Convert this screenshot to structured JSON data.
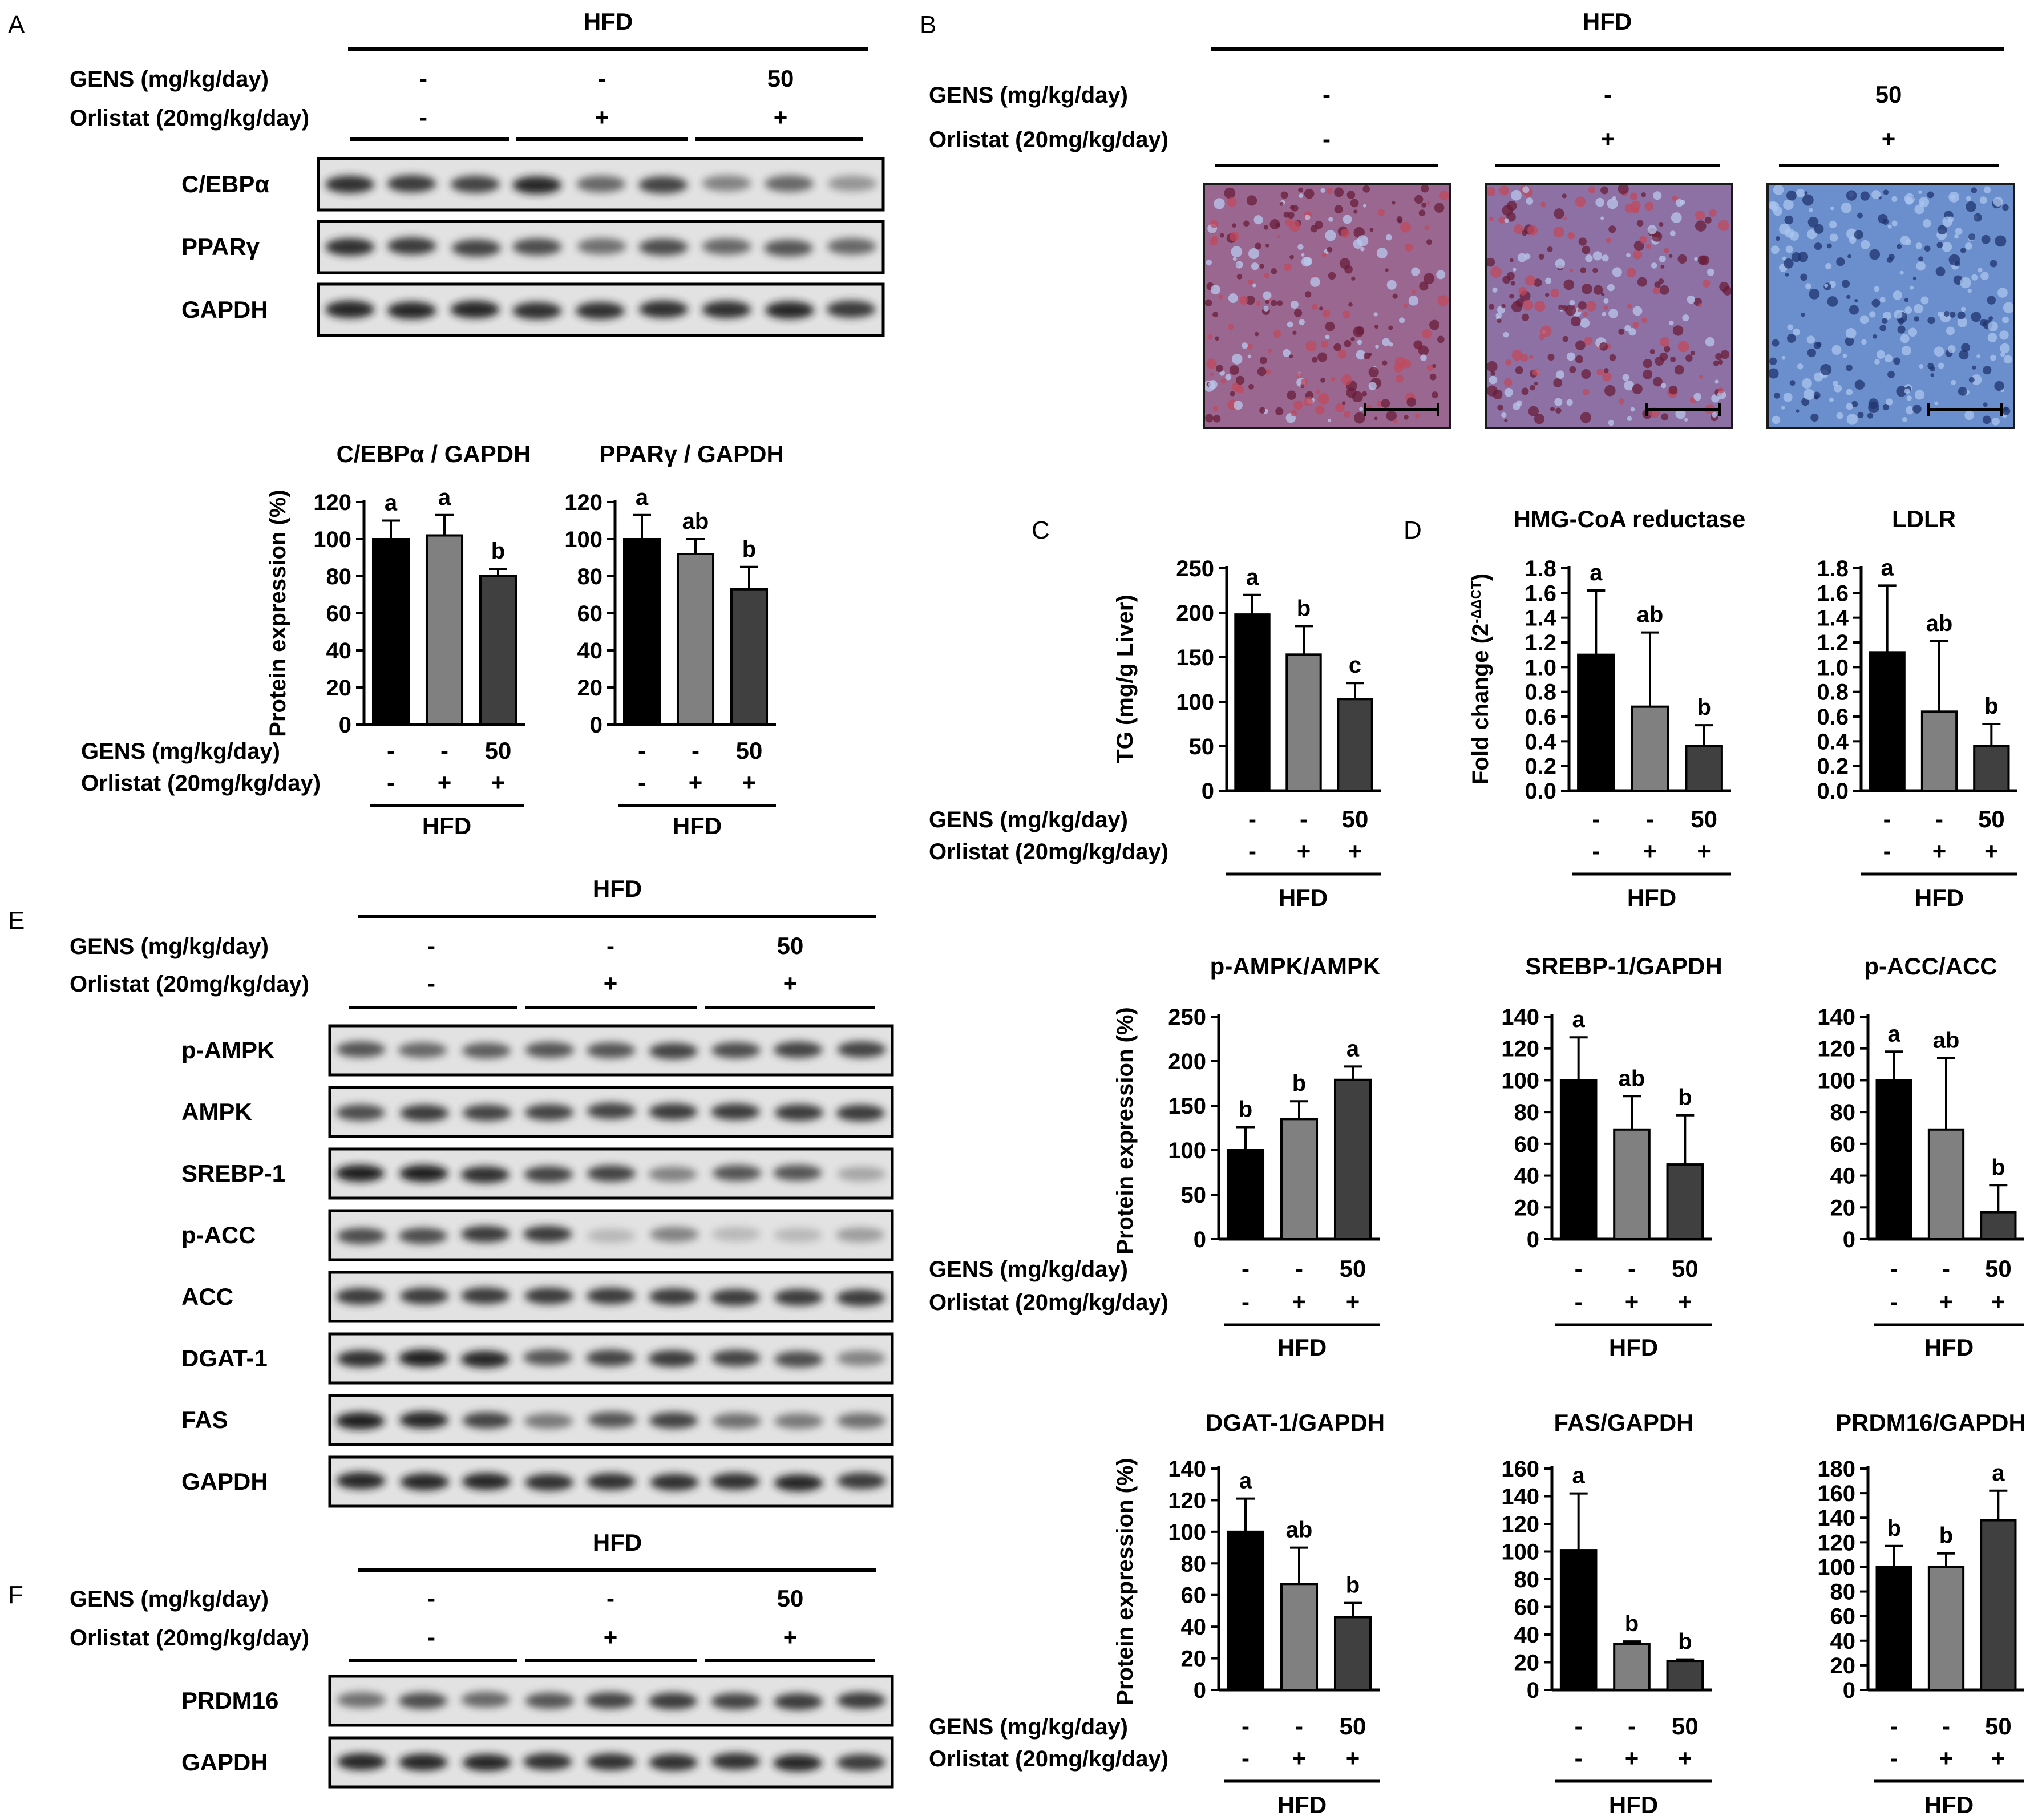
{
  "panels": {
    "A": "A",
    "B": "B",
    "C": "C",
    "D": "D",
    "E": "E",
    "F": "F"
  },
  "labels": {
    "hfd": "HFD",
    "gens": "GENS (mg/kg/day)",
    "gens_alt": "GENS (mg/kg/day)",
    "orlistat": "Orlistat (20mg/kg/day)",
    "treatment_gens": [
      "-",
      "-",
      "50"
    ],
    "treatment_orlistat": [
      "-",
      "+",
      "+"
    ]
  },
  "blots": {
    "A": [
      "C/EBPα",
      "PPARγ",
      "GAPDH"
    ],
    "E": [
      "p-AMPK",
      "AMPK",
      "SREBP-1",
      "p-ACC",
      "ACC",
      "DGAT-1",
      "FAS",
      "GAPDH"
    ],
    "F": [
      "PRDM16",
      "GAPDH"
    ]
  },
  "colors": {
    "bar1": "#000000",
    "bar2": "#808080",
    "bar3": "#404040"
  },
  "histology": {
    "tint": [
      "#b03a56",
      "#9a4a7a",
      "#4a6fb8"
    ]
  },
  "chart_data": [
    {
      "id": "ceb",
      "type": "bar",
      "title": "C/EBPα / GAPDH",
      "ylabel": "Protein expression (%)",
      "ylim": [
        0,
        120
      ],
      "yticks": [
        0,
        20,
        40,
        60,
        80,
        100,
        120
      ],
      "categories": [
        "GENS - / Orlistat -",
        "GENS - / Orlistat +",
        "GENS 50 / Orlistat +"
      ],
      "values": [
        100,
        102,
        80
      ],
      "errors": [
        10,
        11,
        4
      ],
      "letters": [
        "a",
        "a",
        "b"
      ]
    },
    {
      "id": "ppar",
      "type": "bar",
      "title": "PPARγ / GAPDH",
      "ylabel": "",
      "ylim": [
        0,
        120
      ],
      "yticks": [
        0,
        20,
        40,
        60,
        80,
        100,
        120
      ],
      "categories": [
        "GENS - / Orlistat -",
        "GENS - / Orlistat +",
        "GENS 50 / Orlistat +"
      ],
      "values": [
        100,
        92,
        73
      ],
      "errors": [
        13,
        8,
        12
      ],
      "letters": [
        "a",
        "ab",
        "b"
      ]
    },
    {
      "id": "tg",
      "type": "bar",
      "title": "",
      "ylabel": "TG (mg/g Liver)",
      "ylim": [
        0,
        250
      ],
      "yticks": [
        0,
        50,
        100,
        150,
        200,
        250
      ],
      "categories": [
        "GENS - / Orlistat -",
        "GENS - / Orlistat +",
        "GENS 50 / Orlistat +"
      ],
      "values": [
        198,
        153,
        103
      ],
      "errors": [
        22,
        32,
        18
      ],
      "letters": [
        "a",
        "b",
        "c"
      ]
    },
    {
      "id": "hmg",
      "type": "bar",
      "title": "HMG-CoA reductase",
      "ylabel": "Fold change (2",
      "ylabel_sup": "-ΔΔCT",
      "ylabel_close": ")",
      "ylim": [
        0,
        1.8
      ],
      "yticks": [
        0.0,
        0.2,
        0.4,
        0.6,
        0.8,
        1.0,
        1.2,
        1.4,
        1.6,
        1.8
      ],
      "categories": [
        "GENS - / Orlistat -",
        "GENS - / Orlistat +",
        "GENS 50 / Orlistat +"
      ],
      "values": [
        1.1,
        0.68,
        0.36
      ],
      "errors": [
        0.52,
        0.6,
        0.17
      ],
      "letters": [
        "a",
        "ab",
        "b"
      ]
    },
    {
      "id": "ldlr",
      "type": "bar",
      "title": "LDLR",
      "ylabel": "",
      "ylim": [
        0,
        1.8
      ],
      "yticks": [
        0.0,
        0.2,
        0.4,
        0.6,
        0.8,
        1.0,
        1.2,
        1.4,
        1.6,
        1.8
      ],
      "categories": [
        "GENS - / Orlistat -",
        "GENS - / Orlistat +",
        "GENS 50 / Orlistat +"
      ],
      "values": [
        1.12,
        0.64,
        0.36
      ],
      "errors": [
        0.54,
        0.57,
        0.18
      ],
      "letters": [
        "a",
        "ab",
        "b"
      ]
    },
    {
      "id": "pampk",
      "type": "bar",
      "title": "p-AMPK/AMPK",
      "ylabel": "Protein expression (%)",
      "ylim": [
        0,
        250
      ],
      "yticks": [
        0,
        50,
        100,
        150,
        200,
        250
      ],
      "categories": [
        "GENS - / Orlistat -",
        "GENS - / Orlistat +",
        "GENS 50 / Orlistat +"
      ],
      "values": [
        100,
        135,
        179
      ],
      "errors": [
        26,
        20,
        15
      ],
      "letters": [
        "b",
        "b",
        "a"
      ]
    },
    {
      "id": "srebp",
      "type": "bar",
      "title": "SREBP-1/GAPDH",
      "ylabel": "",
      "ylim": [
        0,
        140
      ],
      "yticks": [
        0,
        20,
        40,
        60,
        80,
        100,
        120,
        140
      ],
      "categories": [
        "GENS - / Orlistat -",
        "GENS - / Orlistat +",
        "GENS 50 / Orlistat +"
      ],
      "values": [
        100,
        69,
        47
      ],
      "errors": [
        27,
        21,
        31
      ],
      "letters": [
        "a",
        "ab",
        "b"
      ]
    },
    {
      "id": "pacc",
      "type": "bar",
      "title": "p-ACC/ACC",
      "ylabel": "",
      "ylim": [
        0,
        140
      ],
      "yticks": [
        0,
        20,
        40,
        60,
        80,
        100,
        120,
        140
      ],
      "categories": [
        "GENS - / Orlistat -",
        "GENS - / Orlistat +",
        "GENS 50 / Orlistat +"
      ],
      "values": [
        100,
        69,
        17
      ],
      "errors": [
        18,
        45,
        17
      ],
      "letters": [
        "a",
        "ab",
        "b"
      ]
    },
    {
      "id": "dgat",
      "type": "bar",
      "title": "DGAT-1/GAPDH",
      "ylabel": "Protein expression (%)",
      "ylim": [
        0,
        140
      ],
      "yticks": [
        0,
        20,
        40,
        60,
        80,
        100,
        120,
        140
      ],
      "categories": [
        "GENS - / Orlistat -",
        "GENS - / Orlistat +",
        "GENS 50 / Orlistat +"
      ],
      "values": [
        100,
        67,
        46
      ],
      "errors": [
        21,
        23,
        9
      ],
      "letters": [
        "a",
        "ab",
        "b"
      ]
    },
    {
      "id": "fas",
      "type": "bar",
      "title": "FAS/GAPDH",
      "ylabel": "",
      "ylim": [
        0,
        160
      ],
      "yticks": [
        0,
        20,
        40,
        60,
        80,
        100,
        120,
        140,
        160
      ],
      "categories": [
        "GENS - / Orlistat -",
        "GENS - / Orlistat +",
        "GENS 50 / Orlistat +"
      ],
      "values": [
        101,
        33,
        21
      ],
      "errors": [
        41,
        2,
        1
      ],
      "letters": [
        "a",
        "b",
        "b"
      ]
    },
    {
      "id": "prdm",
      "type": "bar",
      "title": "PRDM16/GAPDH",
      "ylabel": "",
      "ylim": [
        0,
        180
      ],
      "yticks": [
        0,
        20,
        40,
        60,
        80,
        100,
        120,
        140,
        160,
        180
      ],
      "categories": [
        "GENS - / Orlistat -",
        "GENS - / Orlistat +",
        "GENS 50 / Orlistat +"
      ],
      "values": [
        100,
        100,
        138
      ],
      "errors": [
        17,
        11,
        24
      ],
      "letters": [
        "b",
        "b",
        "a"
      ]
    }
  ]
}
